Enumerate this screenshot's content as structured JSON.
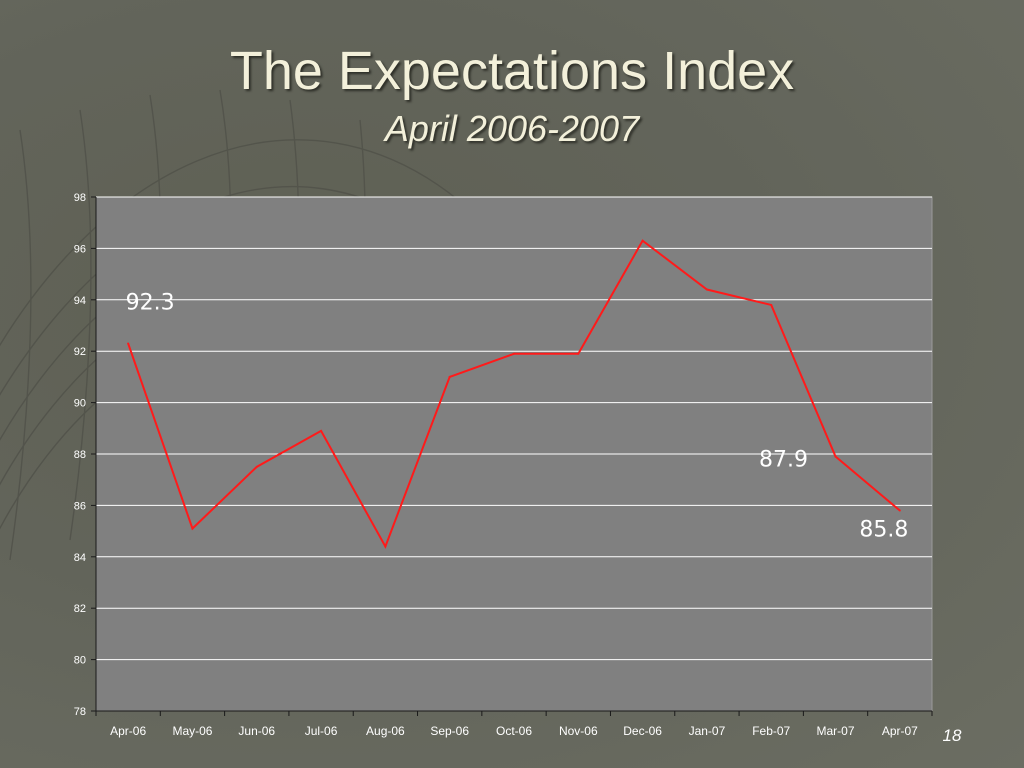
{
  "slide": {
    "title": "The Expectations Index",
    "subtitle": "April 2006-2007",
    "number": "18"
  },
  "colors": {
    "background": "#62645a",
    "plot_area": "#808080",
    "line": "#ff1a1a",
    "gridline": "#ffffff",
    "title_text": "#f3f0da"
  },
  "chart_data": {
    "type": "line",
    "categories": [
      "Apr-06",
      "May-06",
      "Jun-06",
      "Jul-06",
      "Aug-06",
      "Sep-06",
      "Oct-06",
      "Nov-06",
      "Dec-06",
      "Jan-07",
      "Feb-07",
      "Mar-07",
      "Apr-07"
    ],
    "series": [
      {
        "values": [
          92.3,
          85.1,
          87.5,
          88.9,
          84.4,
          91.0,
          91.9,
          91.9,
          96.3,
          94.4,
          93.8,
          87.9,
          85.8
        ]
      }
    ],
    "ylim": [
      78,
      98
    ],
    "yticks": [
      "78",
      "80",
      "82",
      "84",
      "86",
      "88",
      "90",
      "92",
      "94",
      "96",
      "98"
    ],
    "annotations": [
      {
        "index": 0,
        "label": "92.3"
      },
      {
        "index": 11,
        "label": "87.9"
      },
      {
        "index": 12,
        "label": "85.8"
      }
    ],
    "grid": true,
    "legend": "none",
    "title": "",
    "xlabel": "",
    "ylabel": ""
  }
}
